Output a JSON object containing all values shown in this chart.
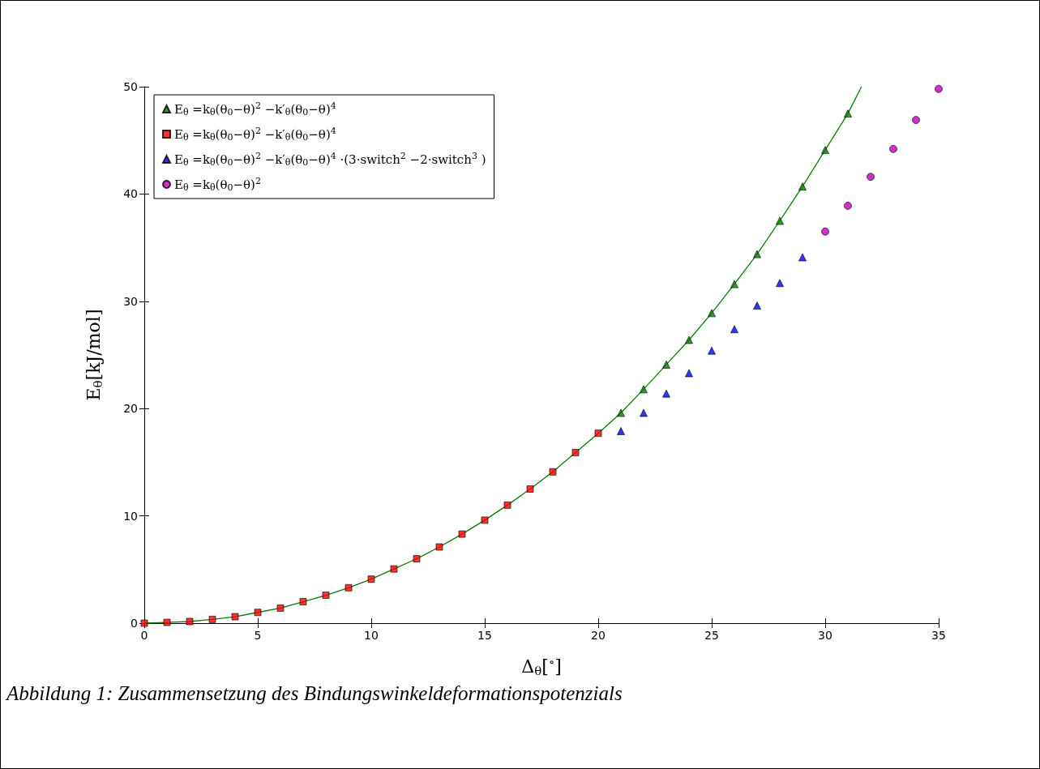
{
  "chart_data": {
    "type": "scatter",
    "xlabel": "Δ$_{θ}$[$^{∘}$]",
    "ylabel": "E$_{θ}$[kJ/mol]",
    "xlim": [
      0,
      35
    ],
    "ylim": [
      0,
      50
    ],
    "xticks": [
      0,
      5,
      10,
      15,
      20,
      25,
      30,
      35
    ],
    "yticks": [
      0,
      10,
      20,
      30,
      40,
      50
    ],
    "grid": false,
    "legend": "top left",
    "annotations": [
      "Abbildung 1: Zusammensetzung des Bindungswinkeldeformationspotenzials"
    ],
    "series": [
      {
        "type": "line",
        "marker": "none",
        "color": "#008000",
        "x": [
          0,
          1,
          2,
          3,
          4,
          5,
          6,
          7,
          8,
          9,
          10,
          11,
          12,
          13,
          14,
          15,
          16,
          17,
          18,
          19,
          20,
          21,
          22,
          23,
          24,
          25,
          26,
          27,
          28,
          29,
          30,
          31,
          31.6
        ],
        "values": [
          0,
          0.07,
          0.15,
          0.35,
          0.6,
          1.0,
          1.4,
          2.0,
          2.6,
          3.3,
          4.1,
          5.05,
          6.0,
          7.1,
          8.3,
          9.6,
          11.0,
          12.5,
          14.1,
          15.9,
          17.7,
          19.6,
          21.8,
          24.1,
          26.4,
          28.9,
          31.6,
          34.4,
          37.5,
          40.7,
          44.1,
          47.5,
          50
        ]
      },
      {
        "name": "E$_{θ}$ =k$_{θ}$(θ$_{0}$−θ)$^{2}$ −k′$_{θ}$(θ$_{0}$−θ)$^{4}$",
        "marker": "triangle",
        "color": "#008000",
        "x": [
          21,
          22,
          23,
          24,
          25,
          26,
          27,
          28,
          29,
          30,
          31
        ],
        "values": [
          19.6,
          21.8,
          24.1,
          26.4,
          28.9,
          31.6,
          34.4,
          37.5,
          40.7,
          44.1,
          47.5
        ]
      },
      {
        "name": "E$_{θ}$ =k$_{θ}$(θ$_{0}$−θ)$^{2}$ −k′$_{θ}$(θ$_{0}$−θ)$^{4}$",
        "marker": "square",
        "color": "#ff0000",
        "x": [
          0,
          1,
          2,
          3,
          4,
          5,
          6,
          7,
          8,
          9,
          10,
          11,
          12,
          13,
          14,
          15,
          16,
          17,
          18,
          19,
          20
        ],
        "values": [
          0,
          0.07,
          0.15,
          0.35,
          0.6,
          1.0,
          1.4,
          2.0,
          2.6,
          3.3,
          4.1,
          5.05,
          6.0,
          7.1,
          8.3,
          9.6,
          11.0,
          12.5,
          14.1,
          15.9,
          17.7
        ]
      },
      {
        "name": "E$_{θ}$ =k$_{θ}$(θ$_{0}$−θ)$^{2}$ −k′$_{θ}$(θ$_{0}$−θ)$^{4}$ ·(3·switch$^{2}$ −2·switch$^{3}$ )",
        "marker": "triangle",
        "color": "#0000ff",
        "x": [
          21,
          22,
          23,
          24,
          25,
          26,
          27,
          28,
          29
        ],
        "values": [
          17.9,
          19.6,
          21.4,
          23.3,
          25.4,
          27.4,
          29.6,
          31.7,
          34.1
        ]
      },
      {
        "name": "E$_{θ}$ =k$_{θ}$(θ$_{0}$−θ)$^{2}$",
        "marker": "circle",
        "color": "#bf00bf",
        "x": [
          30,
          31,
          32,
          33,
          34,
          35
        ],
        "values": [
          36.5,
          38.9,
          41.6,
          44.2,
          46.9,
          49.8
        ]
      }
    ]
  }
}
